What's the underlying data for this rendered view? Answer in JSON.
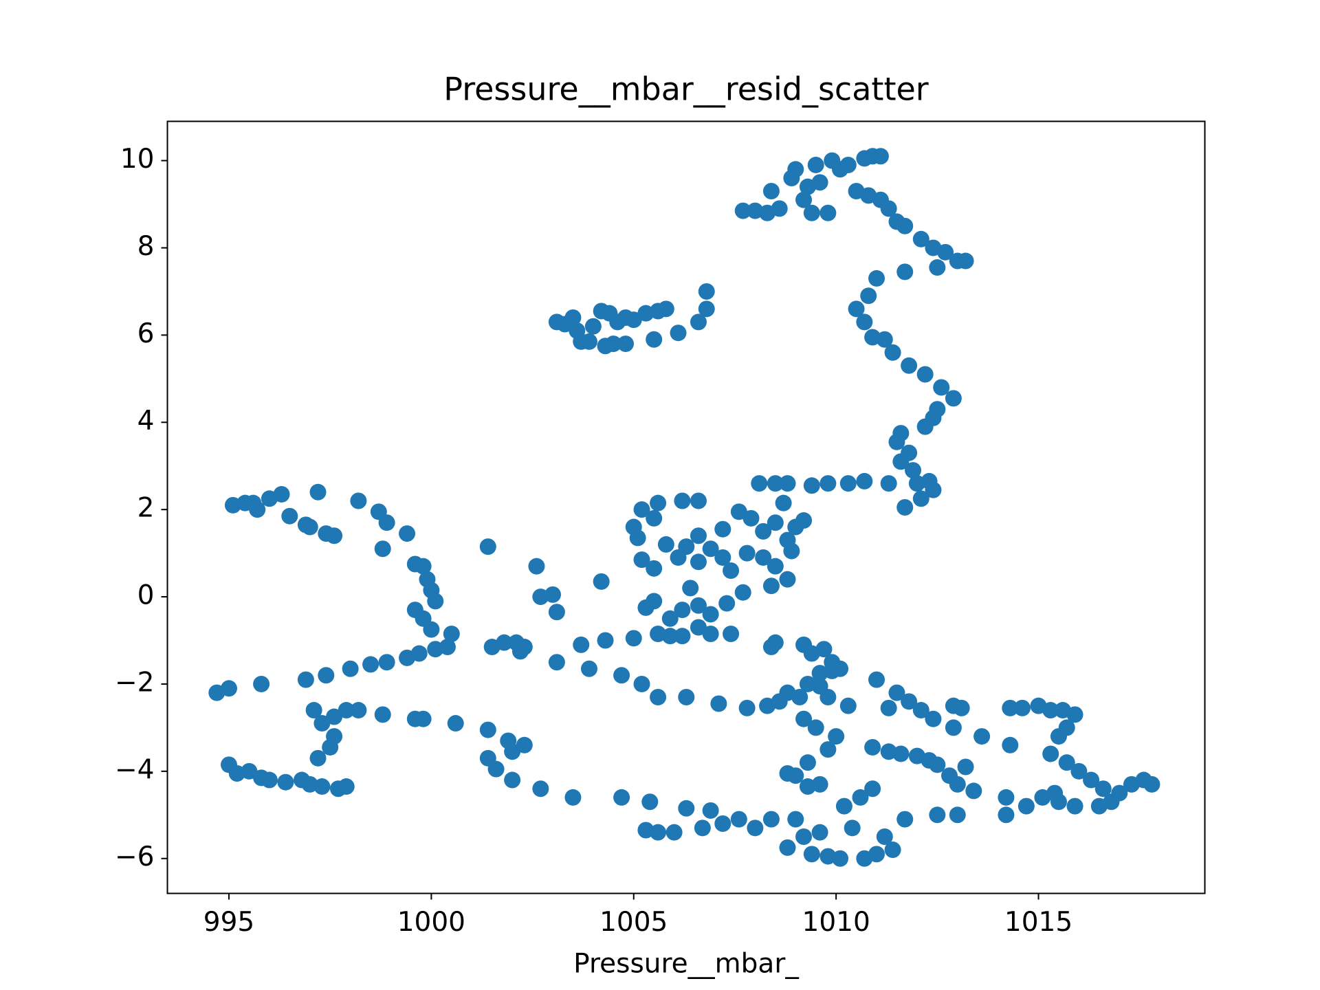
{
  "chart_data": {
    "type": "scatter",
    "title": "Pressure__mbar__resid_scatter",
    "x_label": "Pressure__mbar_",
    "color": "#1f77b4",
    "xlim": [
      993.48,
      1019.11
    ],
    "ylim": [
      -6.8,
      10.9
    ],
    "xticks": [
      995,
      1000,
      1005,
      1010,
      1015
    ],
    "yticks": [
      {
        "value": -6,
        "label": "−6"
      },
      {
        "value": -4,
        "label": "−4"
      },
      {
        "value": -2,
        "label": "−2"
      },
      0,
      2,
      4,
      6,
      8,
      10
    ],
    "x": [
      1007.7,
      1008,
      1008.3,
      1008.4,
      1008.6,
      1008.9,
      1009,
      1009.2,
      1009.3,
      1009.5,
      1009.6,
      1009.4,
      1009.8,
      1009.9,
      1010.1,
      1010.3,
      1010.5,
      1010.7,
      1010.9,
      1011.1,
      1010.8,
      1011.1,
      1011.3,
      1011.5,
      1011.7,
      1012.1,
      1012.4,
      1012.7,
      1013,
      1013.2,
      1012.5,
      1011.7,
      1011,
      1010.8,
      1010.5,
      1010.7,
      1010.9,
      1011.2,
      1011.4,
      1011.8,
      1012.2,
      1012.6,
      1012.9,
      1012.5,
      1012.4,
      1012.2,
      1011.6,
      1011.5,
      1011.8,
      1011.6,
      1011.9,
      1012,
      1012.3,
      1012.4,
      1012.1,
      1011.7,
      1010.7,
      1011.3,
      1010.3,
      1009.8,
      1009.4,
      1008.8,
      1008.5,
      1008.1,
      1008.7,
      1003.1,
      1003.3,
      1003.5,
      1003.6,
      1003.7,
      1003.9,
      1004,
      1004.2,
      1004.4,
      1004.3,
      1004.5,
      1004.6,
      1004.8,
      1004.8,
      1005,
      1005.3,
      1005.6,
      1005.8,
      1005.5,
      1006.1,
      1006.6,
      1006.8,
      1006.8,
      995.1,
      995.4,
      995.6,
      995.7,
      996,
      996.3,
      996.5,
      996.9,
      997,
      997.2,
      997.4,
      997.6,
      998.2,
      998.7,
      998.9,
      999.4,
      998.8,
      999.6,
      999.8,
      999.9,
      1000,
      1000.1,
      999.6,
      999.8,
      1000,
      994.7,
      995,
      995.8,
      996.9,
      997.4,
      998,
      998.5,
      998.9,
      999.4,
      999.7,
      1000.1,
      1000.4,
      1000.5,
      1001.5,
      1001.8,
      1002.1,
      1002.2,
      1002.3,
      1003.1,
      1003.7,
      1003.9,
      1004.3,
      1004.7,
      1005.2,
      1005.6,
      1006.3,
      1007.1,
      1007.8,
      1008.3,
      1008.6,
      1008.8,
      1009.1,
      1009.3,
      1009.6,
      1009.9,
      1010.1,
      1010.3,
      1011,
      1011.3,
      1011.5,
      1011.8,
      1012.1,
      1012.4,
      1012.9,
      1013.1,
      1012.9,
      1013.6,
      1014.3,
      1014.6,
      1014.3,
      1015,
      1015.3,
      1015.6,
      1015.9,
      1015.7,
      1015.5,
      1015.3,
      1015.7,
      1016,
      1016.3,
      1016.6,
      1017,
      1017.3,
      1017.6,
      1017.8,
      1016.8,
      1016.5,
      995,
      995.2,
      995.5,
      995.8,
      996,
      996.4,
      996.8,
      997,
      997.3,
      997.7,
      997.9,
      997.2,
      997.5,
      997.6,
      997.3,
      997.1,
      997.6,
      997.9,
      998.2,
      998.8,
      999.6,
      999.8,
      1000.6,
      1001.4,
      1001.4,
      1001.6,
      1001.9,
      1002,
      1002.3,
      1002,
      1002.7,
      1003.5,
      1004.7,
      1005.4,
      1005.3,
      1005.6,
      1006,
      1006.3,
      1006.7,
      1006.9,
      1007.2,
      1007.6,
      1008,
      1008.4,
      1008.8,
      1009,
      1009.2,
      1009.4,
      1009.6,
      1009.8,
      1010.1,
      1010.4,
      1010.7,
      1011,
      1011.2,
      1011.4,
      1011.7,
      1010.2,
      1010.6,
      1010.9,
      1009.3,
      1009,
      1008.8,
      1009.3,
      1009.6,
      1009.8,
      1010,
      1009.5,
      1009.2,
      1010.9,
      1011.3,
      1011.6,
      1012,
      1012.3,
      1012.5,
      1012.8,
      1013,
      1013.2,
      1013.4,
      1012.5,
      1013,
      1014.2,
      1014.2,
      1014.7,
      1015.1,
      1015.5,
      1015.9,
      1015.4,
      1005,
      1005.1,
      1005.2,
      1005.5,
      1005.6,
      1006.2,
      1006.6,
      1005.2,
      1005.5,
      1005.8,
      1006.1,
      1006.3,
      1006.6,
      1006.9,
      1007.2,
      1007.4,
      1006.6,
      1007.2,
      1005.3,
      1005.5,
      1005.9,
      1006.2,
      1006.4,
      1006.6,
      1006.9,
      1007.3,
      1006.2,
      1006.6,
      1006.9,
      1007.4,
      1005.9,
      1005.6,
      1005,
      1001.4,
      1002.6,
      1002.7,
      1003,
      1003.1,
      1004.2,
      1007.6,
      1007.9,
      1008.2,
      1008.5,
      1008.8,
      1009,
      1009.2,
      1007.8,
      1008.2,
      1008.5,
      1008.8,
      1008.4,
      1007.7,
      1008.9,
      1008.5,
      1008.4,
      1009.2,
      1009.4,
      1009.7,
      1009.9,
      1009.6,
      1009.8
    ],
    "y": [
      8.85,
      8.85,
      8.8,
      9.3,
      8.9,
      9.6,
      9.8,
      9.1,
      9.4,
      9.9,
      9.5,
      8.8,
      8.8,
      10,
      9.8,
      9.9,
      9.3,
      10.05,
      10.1,
      10.1,
      9.2,
      9.1,
      8.9,
      8.6,
      8.5,
      8.2,
      8,
      7.9,
      7.7,
      7.7,
      7.55,
      7.45,
      7.3,
      6.9,
      6.6,
      6.3,
      5.95,
      5.9,
      5.6,
      5.3,
      5.1,
      4.8,
      4.55,
      4.3,
      4.1,
      3.9,
      3.75,
      3.55,
      3.3,
      3.1,
      2.9,
      2.6,
      2.65,
      2.45,
      2.25,
      2.05,
      2.65,
      2.6,
      2.6,
      2.6,
      2.55,
      2.6,
      2.6,
      2.6,
      2.15,
      6.3,
      6.25,
      6.4,
      6.1,
      5.85,
      5.85,
      6.2,
      6.55,
      6.5,
      5.75,
      5.8,
      6.3,
      6.4,
      5.8,
      6.35,
      6.5,
      6.55,
      6.6,
      5.9,
      6.05,
      6.3,
      6.6,
      7,
      2.1,
      2.15,
      2.15,
      2,
      2.25,
      2.35,
      1.85,
      1.65,
      1.6,
      2.4,
      1.45,
      1.4,
      2.2,
      1.95,
      1.7,
      1.45,
      1.1,
      0.75,
      0.7,
      0.4,
      0.15,
      -0.1,
      -0.3,
      -0.5,
      -0.75,
      -2.2,
      -2.1,
      -2,
      -1.9,
      -1.8,
      -1.65,
      -1.55,
      -1.5,
      -1.4,
      -1.3,
      -1.2,
      -1.15,
      -0.85,
      -1.15,
      -1.05,
      -1.05,
      -1.25,
      -1.15,
      -1.5,
      -1.1,
      -1.65,
      -1,
      -1.8,
      -2,
      -2.3,
      -2.3,
      -2.45,
      -2.55,
      -2.5,
      -2.4,
      -2.2,
      -2.3,
      -2,
      -1.75,
      -1.7,
      -1.65,
      -2.5,
      -1.9,
      -2.55,
      -2.2,
      -2.4,
      -2.6,
      -2.8,
      -2.5,
      -2.55,
      -3,
      -3.2,
      -2.55,
      -2.55,
      -3.4,
      -2.5,
      -2.6,
      -2.6,
      -2.7,
      -3,
      -3.2,
      -3.6,
      -3.8,
      -4,
      -4.2,
      -4.4,
      -4.5,
      -4.3,
      -4.2,
      -4.3,
      -4.7,
      -4.8,
      -3.85,
      -4.05,
      -4,
      -4.15,
      -4.2,
      -4.25,
      -4.2,
      -4.3,
      -4.35,
      -4.4,
      -4.35,
      -3.7,
      -3.45,
      -3.2,
      -2.9,
      -2.6,
      -2.75,
      -2.6,
      -2.6,
      -2.7,
      -2.8,
      -2.8,
      -2.9,
      -3.05,
      -3.7,
      -3.95,
      -3.3,
      -3.55,
      -3.4,
      -4.2,
      -4.4,
      -4.6,
      -4.6,
      -4.7,
      -5.35,
      -5.4,
      -5.4,
      -4.85,
      -5.3,
      -4.9,
      -5.2,
      -5.1,
      -5.3,
      -5.1,
      -5.75,
      -5.1,
      -5.5,
      -5.9,
      -5.4,
      -5.95,
      -6,
      -5.3,
      -6,
      -5.9,
      -5.5,
      -5.8,
      -5.1,
      -4.8,
      -4.6,
      -4.4,
      -4.35,
      -4.1,
      -4.05,
      -3.8,
      -4.3,
      -3.5,
      -3.2,
      -3,
      -2.8,
      -3.45,
      -3.55,
      -3.6,
      -3.65,
      -3.75,
      -3.85,
      -4.1,
      -4.3,
      -3.9,
      -4.45,
      -5,
      -5,
      -4.6,
      -5,
      -4.8,
      -4.6,
      -4.7,
      -4.8,
      -4.5,
      1.6,
      1.35,
      2,
      1.8,
      2.15,
      2.2,
      2.2,
      0.85,
      0.65,
      1.2,
      0.9,
      1.15,
      0.8,
      1.1,
      0.9,
      0.6,
      1.4,
      1.55,
      -0.25,
      -0.1,
      -0.5,
      -0.3,
      0.2,
      -0.2,
      -0.4,
      -0.15,
      -0.9,
      -0.7,
      -0.85,
      -0.85,
      -0.9,
      -0.85,
      -0.95,
      1.15,
      0.7,
      0,
      0.05,
      -0.35,
      0.35,
      1.95,
      1.8,
      1.5,
      1.7,
      1.3,
      1.6,
      1.75,
      1,
      0.9,
      0.7,
      0.4,
      0.25,
      0.1,
      1.05,
      -1.05,
      -1.15,
      -1.1,
      -1.3,
      -1.2,
      -1.5,
      -2.05,
      -2.3
    ]
  }
}
